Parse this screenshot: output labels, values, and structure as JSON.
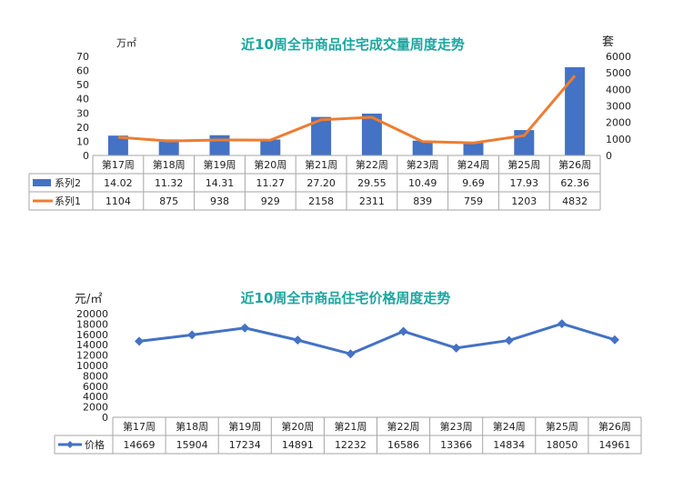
{
  "chart_data": [
    {
      "type": "bar",
      "title": "近10周全市商品住宅成交量周度走势",
      "y_left_unit": "万㎡",
      "y_right_unit": "套",
      "categories": [
        "第17周",
        "第18周",
        "第19周",
        "第20周",
        "第21周",
        "第22周",
        "第23周",
        "第24周",
        "第25周",
        "第26周"
      ],
      "ylim_left": [
        0,
        70
      ],
      "yticks_left": [
        "0",
        "10",
        "20",
        "30",
        "40",
        "50",
        "60",
        "70"
      ],
      "ylim_right": [
        0,
        6000
      ],
      "yticks_right": [
        "0",
        "1000",
        "2000",
        "3000",
        "4000",
        "5000",
        "6000"
      ],
      "series": [
        {
          "name": "系列2",
          "type": "bar",
          "axis": "left",
          "color": "#4472c4",
          "values": [
            14.02,
            11.32,
            14.31,
            11.27,
            27.2,
            29.55,
            10.49,
            9.69,
            17.93,
            62.36
          ],
          "labels": [
            "14.02",
            "11.32",
            "14.31",
            "11.27",
            "27.20",
            "29.55",
            "10.49",
            "9.69",
            "17.93",
            "62.36"
          ]
        },
        {
          "name": "系列1",
          "type": "line",
          "axis": "right",
          "color": "#ed7d31",
          "values": [
            1104,
            875,
            938,
            929,
            2158,
            2311,
            839,
            759,
            1203,
            4832
          ],
          "labels": [
            "1104",
            "875",
            "938",
            "929",
            "2158",
            "2311",
            "839",
            "759",
            "1203",
            "4832"
          ]
        }
      ],
      "legend": "data-table-left",
      "grid": false
    },
    {
      "type": "line",
      "title": "近10周全市商品住宅价格周度走势",
      "y_unit": "元/㎡",
      "categories": [
        "第17周",
        "第18周",
        "第19周",
        "第20周",
        "第21周",
        "第22周",
        "第23周",
        "第24周",
        "第25周",
        "第26周"
      ],
      "ylim": [
        0,
        20000
      ],
      "yticks": [
        "0",
        "2000",
        "4000",
        "6000",
        "8000",
        "10000",
        "12000",
        "14000",
        "16000",
        "18000",
        "20000"
      ],
      "series": [
        {
          "name": "价格",
          "color": "#4472c4",
          "values": [
            14669,
            15904,
            17234,
            14891,
            12232,
            16586,
            13366,
            14834,
            18050,
            14961
          ],
          "labels": [
            "14669",
            "15904",
            "17234",
            "14891",
            "12232",
            "16586",
            "13366",
            "14834",
            "18050",
            "14961"
          ]
        }
      ],
      "legend": "data-table-left",
      "grid": false
    }
  ]
}
